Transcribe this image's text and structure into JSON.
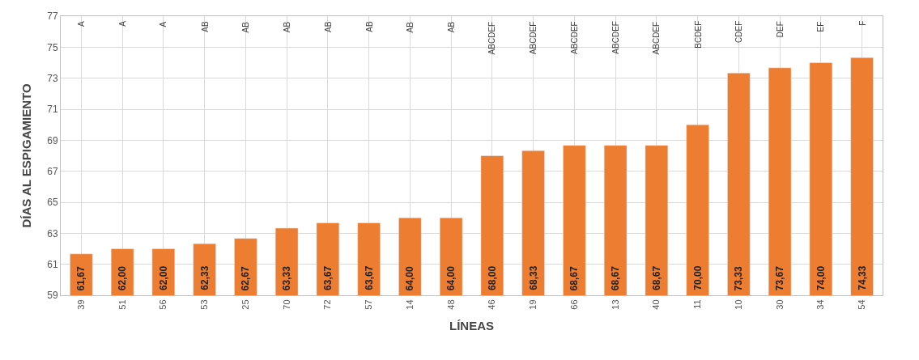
{
  "chart_data": {
    "type": "bar",
    "xlabel": "LÍNEAS",
    "ylabel": "DÍAS AL ESPIGAMIENTO",
    "categories": [
      "39",
      "51",
      "56",
      "53",
      "25",
      "70",
      "72",
      "57",
      "14",
      "48",
      "46",
      "19",
      "66",
      "13",
      "40",
      "11",
      "10",
      "30",
      "34",
      "54"
    ],
    "values": [
      61.67,
      62.0,
      62.0,
      62.33,
      62.67,
      63.33,
      63.67,
      63.67,
      64.0,
      64.0,
      68.0,
      68.33,
      68.67,
      68.67,
      68.67,
      70.0,
      73.33,
      73.67,
      74.0,
      74.33
    ],
    "value_labels": [
      "61,67",
      "62,00",
      "62,00",
      "62,33",
      "62,67",
      "63,33",
      "63,67",
      "63,67",
      "64,00",
      "64,00",
      "68,00",
      "68,33",
      "68,67",
      "68,67",
      "68,67",
      "70,00",
      "73,33",
      "73,67",
      "74,00",
      "74,33"
    ],
    "color": "#ed7d31",
    "ylim": [
      59,
      77
    ],
    "yticks": [
      59,
      61,
      63,
      65,
      67,
      69,
      71,
      73,
      75,
      77
    ],
    "grid": true,
    "annotations": [
      "A",
      "A",
      "A",
      "AB",
      "AB",
      "AB",
      "AB",
      "AB",
      "AB",
      "AB",
      "ABCDEF",
      "ABCDEF",
      "ABCDEF",
      "ABCDEF",
      "ABCDEF",
      "BCDEF",
      "CDEF",
      "DEF",
      "EF",
      "F"
    ]
  }
}
